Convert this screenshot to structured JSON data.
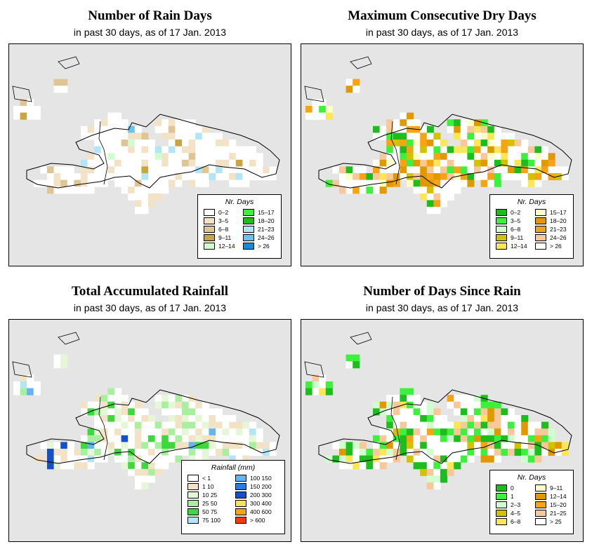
{
  "panels": [
    {
      "id": "rain-days",
      "title": "Number of Rain Days",
      "subtitle": "in past 30 days, as of  17 Jan. 2013",
      "legend": {
        "title": "Nr. Days",
        "entries": [
          {
            "label": "0–2",
            "color": "#ffffff"
          },
          {
            "label": "3–5",
            "color": "#f3e3c6"
          },
          {
            "label": "6–8",
            "color": "#dfc494"
          },
          {
            "label": "9–11",
            "color": "#c8a443"
          },
          {
            "label": "12–14",
            "color": "#cfffcf"
          },
          {
            "label": "15–17",
            "color": "#3cf03c"
          },
          {
            "label": "18–20",
            "color": "#1dbd1d"
          },
          {
            "label": "21–23",
            "color": "#b2e6f6"
          },
          {
            "label": "24–26",
            "color": "#63c5f1"
          },
          {
            "label": "> 26",
            "color": "#1e88d0"
          }
        ]
      }
    },
    {
      "id": "max-dry-days",
      "title": "Maximum Consecutive Dry Days",
      "subtitle": "in past 30 days, as of  17 Jan. 2013",
      "legend": {
        "title": "Nr. Days",
        "entries": [
          {
            "label": "0–2",
            "color": "#1dbd1d"
          },
          {
            "label": "3–5",
            "color": "#3cf03c"
          },
          {
            "label": "6–8",
            "color": "#cfffcf"
          },
          {
            "label": "9–11",
            "color": "#d2c200"
          },
          {
            "label": "12–14",
            "color": "#fbe65a"
          },
          {
            "label": "15–17",
            "color": "#ffffc8"
          },
          {
            "label": "18–20",
            "color": "#e09a00"
          },
          {
            "label": "21–23",
            "color": "#f6a316"
          },
          {
            "label": "24–26",
            "color": "#f8c79a"
          },
          {
            "label": "> 26",
            "color": "#ffffff"
          }
        ]
      }
    },
    {
      "id": "total-rainfall",
      "title": "Total Accumulated Rainfall",
      "subtitle": "in past 30 days, as of  17 Jan. 2013",
      "legend": {
        "title": "Rainfall (mm)",
        "entries": [
          {
            "label": "< 1",
            "color": "#ffffff"
          },
          {
            "label": "1    10",
            "color": "#f3e3c6"
          },
          {
            "label": "10    25",
            "color": "#e5f7d7"
          },
          {
            "label": "25    50",
            "color": "#a8f0a0"
          },
          {
            "label": "50    75",
            "color": "#3cd83c"
          },
          {
            "label": "75    100",
            "color": "#b2e6f6"
          },
          {
            "label": "100    150",
            "color": "#63b5f1"
          },
          {
            "label": "150    200",
            "color": "#2b7be0"
          },
          {
            "label": "200    300",
            "color": "#1650c8"
          },
          {
            "label": "300    400",
            "color": "#f8e15a"
          },
          {
            "label": "400    600",
            "color": "#f6a316"
          },
          {
            "label": "> 600",
            "color": "#f03a10"
          }
        ]
      }
    },
    {
      "id": "days-since-rain",
      "title": "Number of Days Since Rain",
      "subtitle": "in past 30 days, as of  17 Jan. 2013",
      "legend": {
        "title": "Nr. Days",
        "entries": [
          {
            "label": "0",
            "color": "#1dbd1d"
          },
          {
            "label": "1",
            "color": "#3cf03c"
          },
          {
            "label": "2–3",
            "color": "#cfffcf"
          },
          {
            "label": "4–5",
            "color": "#d2c200"
          },
          {
            "label": "6–8",
            "color": "#fbe65a"
          },
          {
            "label": "9–11",
            "color": "#ffffc8"
          },
          {
            "label": "12–14",
            "color": "#e09a00"
          },
          {
            "label": "15–20",
            "color": "#f6a316"
          },
          {
            "label": "21–25",
            "color": "#f8c79a"
          },
          {
            "label": "> 25",
            "color": "#ffffff"
          }
        ]
      }
    }
  ]
}
